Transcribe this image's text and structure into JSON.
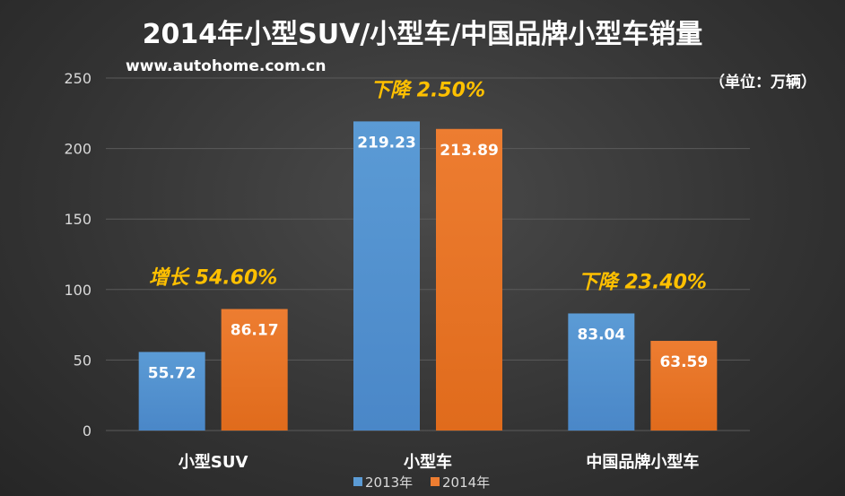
{
  "chart_data": {
    "type": "bar",
    "title": "2014年小型SUV/小型车/中国品牌小型车销量",
    "watermark": "www.autohome.com.cn",
    "unit_label": "（单位：万辆）",
    "categories": [
      "小型SUV",
      "小型车",
      "中国品牌小型车"
    ],
    "series": [
      {
        "name": "2013年",
        "values": [
          55.72,
          219.23,
          83.04
        ],
        "color": "#5b9bd5"
      },
      {
        "name": "2014年",
        "values": [
          86.17,
          213.89,
          63.59
        ],
        "color": "#ed7d31"
      }
    ],
    "data_labels": [
      [
        "55.72",
        "219.23",
        "83.04"
      ],
      [
        "86.17",
        "213.89",
        "63.59"
      ]
    ],
    "annotations": [
      "增长 54.60%",
      "下降 2.50%",
      "下降 23.40%"
    ],
    "ylim": [
      0,
      250
    ],
    "yticks": [
      0,
      50,
      100,
      150,
      200,
      250
    ],
    "grid": true,
    "legend_position": "bottom",
    "colors": {
      "annotation": "#ffc000",
      "grid": "#5a5a5a"
    }
  }
}
